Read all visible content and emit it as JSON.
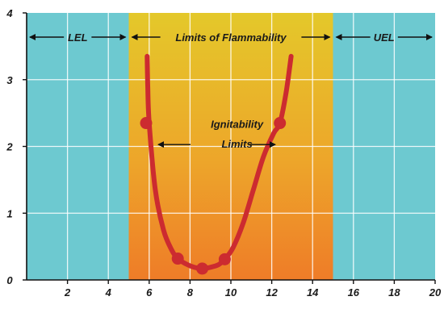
{
  "chart_data": {
    "type": "line",
    "title": "",
    "xlabel": "",
    "ylabel": "",
    "xlim": [
      0,
      20
    ],
    "ylim": [
      0,
      4
    ],
    "x_ticks": [
      2,
      4,
      6,
      8,
      10,
      12,
      14,
      16,
      18,
      20
    ],
    "y_ticks": [
      0,
      1,
      2,
      3,
      4
    ],
    "grid": true,
    "regions": [
      {
        "label": "LEL",
        "x_start": 0,
        "x_end": 5,
        "color": "#6dc9d0"
      },
      {
        "label": "Limits of Flammability",
        "x_start": 5,
        "x_end": 15,
        "gradient_top": "#e4c82a",
        "gradient_bottom": "#ee7c28"
      },
      {
        "label": "UEL",
        "x_start": 15,
        "x_end": 20,
        "color": "#6dc9d0"
      }
    ],
    "series": [
      {
        "color": "#cc2b30",
        "x": [
          5.9,
          5.93,
          6.0,
          6.3,
          6.7,
          7.1,
          7.4,
          7.8,
          8.2,
          8.6,
          9.0,
          9.4,
          9.7,
          10.1,
          10.6,
          11.1,
          11.6,
          12.1,
          12.4,
          12.7,
          12.95
        ],
        "y": [
          3.35,
          2.9,
          2.35,
          1.35,
          0.75,
          0.45,
          0.32,
          0.24,
          0.19,
          0.17,
          0.19,
          0.23,
          0.31,
          0.48,
          0.85,
          1.35,
          1.85,
          2.2,
          2.35,
          2.8,
          3.35
        ]
      }
    ],
    "markers": [
      {
        "x": 5.85,
        "y": 2.35
      },
      {
        "x": 7.4,
        "y": 0.32
      },
      {
        "x": 8.6,
        "y": 0.17
      },
      {
        "x": 9.7,
        "y": 0.31
      },
      {
        "x": 12.4,
        "y": 2.35
      }
    ],
    "annotations": [
      {
        "text": "Ignitability",
        "x": 10.3,
        "y": 2.28
      },
      {
        "text": "Limits",
        "x": 10.3,
        "y": 1.98
      }
    ]
  },
  "colors": {
    "curve": "#cc2b30",
    "side_regions": "#6dc9d0",
    "flammable_top": "#e4c82a",
    "flammable_bottom": "#ee7c28"
  }
}
